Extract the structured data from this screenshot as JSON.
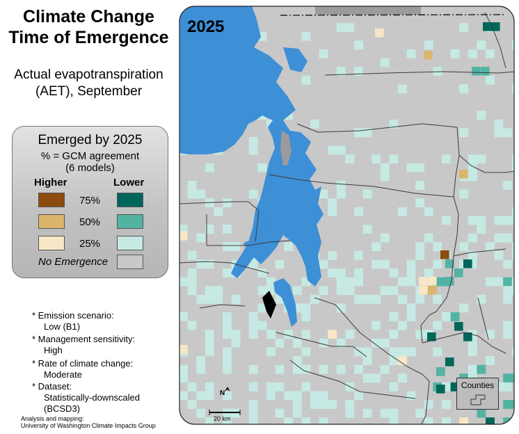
{
  "title": {
    "line1": "Climate Change",
    "line2": "Time of Emergence"
  },
  "subtitle": {
    "line1": "Actual evapotranspiration",
    "line2": "(AET), September"
  },
  "legend": {
    "title": "Emerged by 2025",
    "sub1": "% = GCM agreement",
    "sub2": "(6 models)",
    "higher_label": "Higher",
    "lower_label": "Lower",
    "rows": [
      {
        "pct": "75%",
        "higher_color": "#8b4c0d",
        "lower_color": "#00665a"
      },
      {
        "pct": "50%",
        "higher_color": "#dcb56c",
        "lower_color": "#52b3a3"
      },
      {
        "pct": "25%",
        "higher_color": "#f7e7c6",
        "lower_color": "#c6e9e3"
      }
    ],
    "no_emergence_label": "No Emergence",
    "no_emergence_color": "#c8c8c8"
  },
  "notes": [
    {
      "label": "Emission scenario:",
      "value": "Low (B1)"
    },
    {
      "label": "Management sensitivity:",
      "value": "High"
    },
    {
      "label": "Rate of climate change:",
      "value": "Moderate"
    },
    {
      "label": "Dataset:",
      "value": "Statistically-downscaled",
      "value2": "(BCSD3)"
    }
  ],
  "credit": {
    "line1": "Analysis and mapping:",
    "line2": "University of Washington Climate Impacts Group"
  },
  "map": {
    "year": "2025",
    "counties_label": "Counties",
    "north_label": "N",
    "scale_label": "20 km",
    "colors": {
      "water": "#3d8fd6",
      "land": "#c8c8c8",
      "dark_gray": "#9b9b9b",
      "county_line": "#3a3a3a"
    }
  }
}
